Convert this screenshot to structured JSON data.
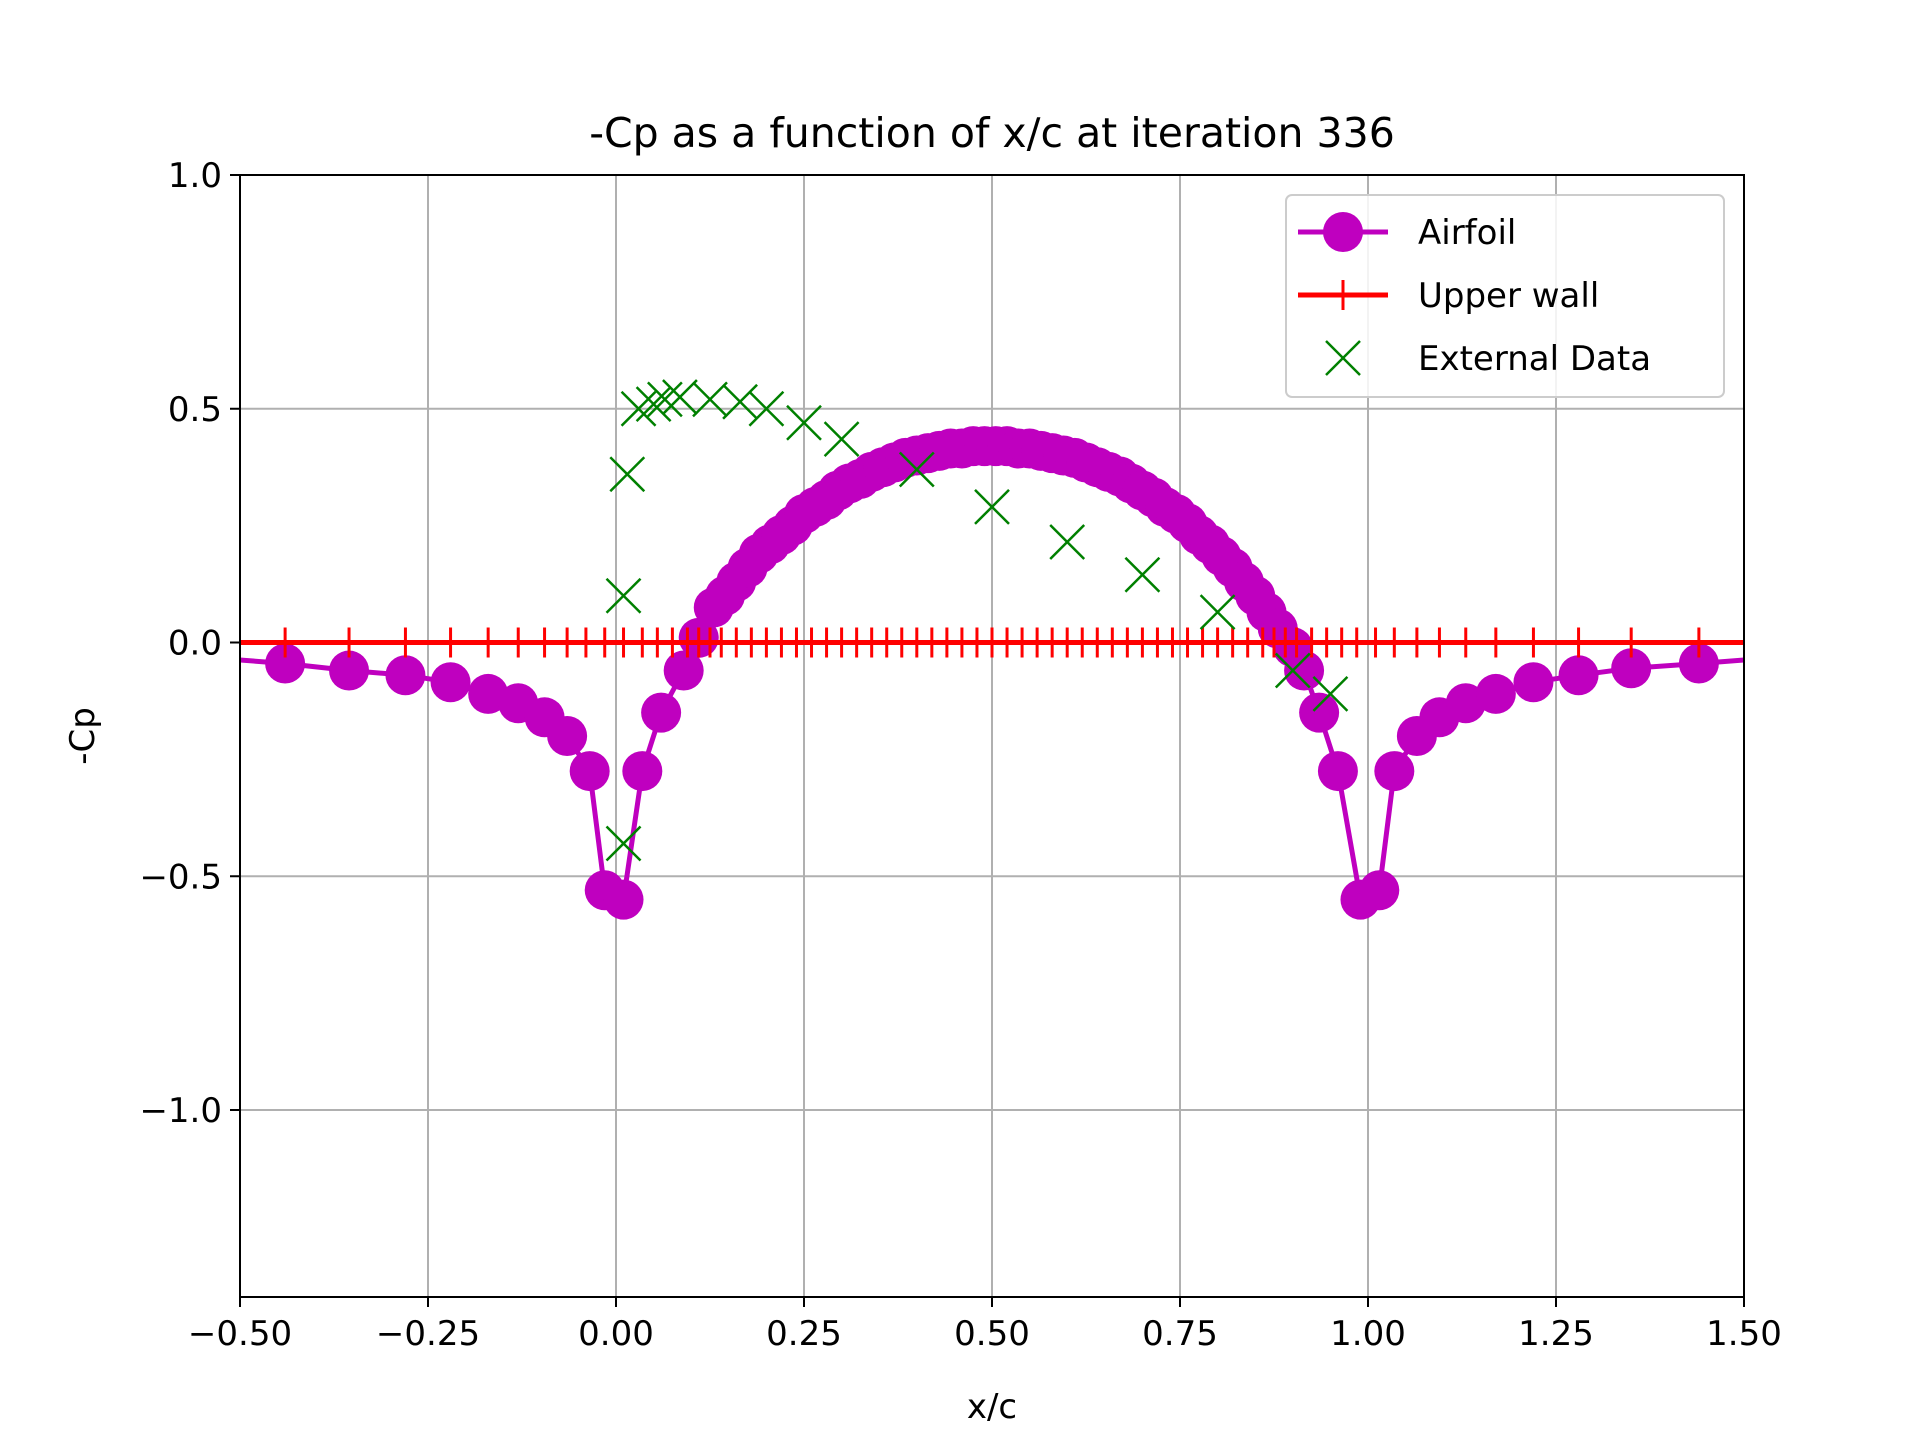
{
  "chart_data": {
    "type": "line",
    "title": "-Cp as a function of x/c at iteration 336",
    "xlabel": "x/c",
    "ylabel": "-Cp",
    "xlim": [
      -0.5,
      1.5
    ],
    "ylim": [
      -1.4,
      1.0
    ],
    "xticks": [
      -0.5,
      -0.25,
      0.0,
      0.25,
      0.5,
      0.75,
      1.0,
      1.25,
      1.5
    ],
    "xtick_labels": [
      "−0.50",
      "−0.25",
      "0.00",
      "0.25",
      "0.50",
      "0.75",
      "1.00",
      "1.25",
      "1.50"
    ],
    "yticks": [
      -1.0,
      -0.5,
      0.0,
      0.5,
      1.0
    ],
    "ytick_labels": [
      "−1.0",
      "−0.5",
      "0.0",
      "0.5",
      "1.0"
    ],
    "grid": true,
    "legend_position": "top-right",
    "colors": {
      "airfoil": "#bf00bf",
      "upper_wall": "#ff0000",
      "external": "#008000",
      "grid": "#b0b0b0"
    },
    "series": [
      {
        "name": "Airfoil",
        "style": "line-circle",
        "x": [
          -0.56,
          -0.44,
          -0.355,
          -0.28,
          -0.22,
          -0.17,
          -0.13,
          -0.095,
          -0.065,
          -0.035,
          -0.015,
          0.01,
          0.035,
          0.06,
          0.09,
          0.11,
          0.13,
          0.145,
          0.16,
          0.175,
          0.19,
          0.205,
          0.22,
          0.235,
          0.25,
          0.265,
          0.28,
          0.295,
          0.31,
          0.325,
          0.34,
          0.355,
          0.37,
          0.385,
          0.4,
          0.415,
          0.43,
          0.445,
          0.46,
          0.475,
          0.49,
          0.505,
          0.52,
          0.535,
          0.55,
          0.565,
          0.58,
          0.595,
          0.61,
          0.625,
          0.64,
          0.655,
          0.67,
          0.685,
          0.7,
          0.715,
          0.73,
          0.745,
          0.76,
          0.775,
          0.79,
          0.805,
          0.82,
          0.835,
          0.85,
          0.865,
          0.88,
          0.9,
          0.915,
          0.935,
          0.96,
          0.99,
          1.015,
          1.035,
          1.065,
          1.095,
          1.13,
          1.17,
          1.22,
          1.28,
          1.35,
          1.44,
          1.56
        ],
        "y": [
          -0.03,
          -0.045,
          -0.06,
          -0.07,
          -0.085,
          -0.11,
          -0.13,
          -0.16,
          -0.2,
          -0.275,
          -0.53,
          -0.55,
          -0.275,
          -0.15,
          -0.06,
          0.01,
          0.075,
          0.1,
          0.13,
          0.16,
          0.19,
          0.21,
          0.23,
          0.25,
          0.275,
          0.29,
          0.305,
          0.325,
          0.34,
          0.35,
          0.365,
          0.375,
          0.385,
          0.395,
          0.4,
          0.405,
          0.41,
          0.415,
          0.415,
          0.42,
          0.42,
          0.42,
          0.42,
          0.415,
          0.415,
          0.41,
          0.405,
          0.4,
          0.395,
          0.385,
          0.375,
          0.365,
          0.355,
          0.34,
          0.325,
          0.31,
          0.29,
          0.275,
          0.255,
          0.23,
          0.21,
          0.185,
          0.16,
          0.13,
          0.1,
          0.065,
          0.03,
          -0.01,
          -0.06,
          -0.15,
          -0.275,
          -0.55,
          -0.53,
          -0.275,
          -0.2,
          -0.16,
          -0.13,
          -0.11,
          -0.085,
          -0.07,
          -0.055,
          -0.045,
          -0.03
        ]
      },
      {
        "name": "Upper wall",
        "style": "line-plus",
        "x": [
          -0.56,
          -0.44,
          -0.355,
          -0.28,
          -0.22,
          -0.17,
          -0.13,
          -0.095,
          -0.065,
          -0.04,
          -0.015,
          0.01,
          0.035,
          0.055,
          0.075,
          0.095,
          0.11,
          0.125,
          0.14,
          0.16,
          0.18,
          0.2,
          0.22,
          0.24,
          0.26,
          0.28,
          0.3,
          0.32,
          0.34,
          0.36,
          0.38,
          0.4,
          0.42,
          0.44,
          0.46,
          0.48,
          0.5,
          0.52,
          0.54,
          0.56,
          0.58,
          0.6,
          0.62,
          0.64,
          0.66,
          0.68,
          0.7,
          0.72,
          0.74,
          0.76,
          0.78,
          0.8,
          0.82,
          0.84,
          0.86,
          0.875,
          0.89,
          0.905,
          0.925,
          0.945,
          0.965,
          0.985,
          1.01,
          1.035,
          1.065,
          1.095,
          1.13,
          1.17,
          1.22,
          1.28,
          1.35,
          1.44,
          1.56
        ],
        "y": [
          0.0,
          0.0,
          0.0,
          0.0,
          0.0,
          0.0,
          0.0,
          0.0,
          0.0,
          0.0,
          0.0,
          0.0,
          0.0,
          0.0,
          0.0,
          0.0,
          0.0,
          0.0,
          0.0,
          0.0,
          0.0,
          0.0,
          0.0,
          0.0,
          0.0,
          0.0,
          0.0,
          0.0,
          0.0,
          0.0,
          0.0,
          0.0,
          0.0,
          0.0,
          0.0,
          0.0,
          0.0,
          0.0,
          0.0,
          0.0,
          0.0,
          0.0,
          0.0,
          0.0,
          0.0,
          0.0,
          0.0,
          0.0,
          0.0,
          0.0,
          0.0,
          0.0,
          0.0,
          0.0,
          0.0,
          0.0,
          0.0,
          0.0,
          0.0,
          0.0,
          0.0,
          0.0,
          0.0,
          0.0,
          0.0,
          0.0,
          0.0,
          0.0,
          0.0,
          0.0,
          0.0,
          0.0,
          0.0
        ]
      },
      {
        "name": "External Data",
        "style": "x-marker",
        "x": [
          0.01,
          0.01,
          0.015,
          0.03,
          0.05,
          0.065,
          0.085,
          0.125,
          0.165,
          0.2,
          0.25,
          0.3,
          0.4,
          0.5,
          0.6,
          0.7,
          0.8,
          0.9,
          0.95
        ],
        "y": [
          -0.43,
          0.1,
          0.36,
          0.5,
          0.51,
          0.52,
          0.525,
          0.52,
          0.515,
          0.5,
          0.47,
          0.435,
          0.37,
          0.29,
          0.215,
          0.145,
          0.065,
          -0.06,
          -0.11
        ]
      }
    ]
  }
}
